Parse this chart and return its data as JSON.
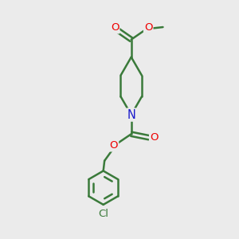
{
  "bg_color": "#ebebeb",
  "bond_color": "#3a7a3a",
  "bond_width": 1.8,
  "atom_colors": {
    "O": "#ee0000",
    "N": "#1a1acc",
    "Cl": "#3a7a3a",
    "C": "#3a7a3a"
  },
  "font_size": 9.5,
  "xlim": [
    0,
    10
  ],
  "ylim": [
    0,
    10
  ]
}
